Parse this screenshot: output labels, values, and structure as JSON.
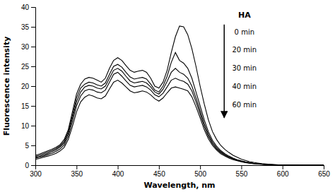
{
  "chart_data": {
    "type": "line",
    "xlabel": "Wavelength, nm",
    "ylabel": "Fluorescence intensity",
    "legend_title": "HA",
    "legend": "upper right",
    "grid": false,
    "xlim": [
      300,
      650
    ],
    "ylim": [
      0,
      40
    ],
    "xticks": [
      300,
      350,
      400,
      450,
      500,
      550,
      600,
      650
    ],
    "yticks": [
      0,
      5,
      10,
      15,
      20,
      25,
      30,
      35,
      40
    ],
    "x": [
      300,
      305,
      310,
      315,
      320,
      325,
      330,
      335,
      340,
      345,
      350,
      355,
      360,
      365,
      370,
      375,
      380,
      385,
      390,
      395,
      400,
      405,
      410,
      415,
      420,
      425,
      430,
      435,
      440,
      445,
      450,
      455,
      460,
      465,
      470,
      475,
      480,
      485,
      490,
      495,
      500,
      505,
      510,
      515,
      520,
      525,
      530,
      535,
      540,
      545,
      550,
      555,
      560,
      565,
      570,
      575,
      580,
      585,
      590,
      595,
      600,
      605,
      610,
      620,
      630,
      640,
      650
    ],
    "series": [
      {
        "name": "0 min",
        "color": "#000000",
        "values": [
          2.5,
          2.8,
          3.2,
          3.6,
          4.0,
          4.5,
          5.2,
          6.5,
          9.0,
          13.5,
          18.0,
          20.5,
          21.8,
          22.2,
          22.0,
          21.5,
          21.0,
          22.0,
          24.5,
          26.5,
          27.2,
          26.5,
          25.2,
          24.0,
          23.5,
          23.8,
          24.0,
          23.5,
          22.0,
          20.0,
          19.5,
          21.0,
          24.0,
          28.5,
          32.5,
          35.2,
          35.0,
          33.0,
          29.5,
          25.0,
          20.0,
          15.5,
          11.5,
          8.5,
          6.5,
          5.0,
          4.0,
          3.2,
          2.5,
          2.0,
          1.5,
          1.2,
          0.9,
          0.7,
          0.55,
          0.4,
          0.3,
          0.2,
          0.15,
          0.1,
          0.07,
          0.05,
          0.03,
          0.02,
          0.01,
          0.0,
          0.0
        ]
      },
      {
        "name": "20 min",
        "color": "#000000",
        "values": [
          2.2,
          2.5,
          2.9,
          3.3,
          3.7,
          4.2,
          4.9,
          6.0,
          8.5,
          12.5,
          17.0,
          19.5,
          20.5,
          21.0,
          20.8,
          20.3,
          20.0,
          20.8,
          23.0,
          25.0,
          25.5,
          24.8,
          23.5,
          22.3,
          21.8,
          22.0,
          22.2,
          21.8,
          20.5,
          19.0,
          18.5,
          20.0,
          22.5,
          26.0,
          28.5,
          26.5,
          25.8,
          24.5,
          22.0,
          18.5,
          15.0,
          11.5,
          8.5,
          6.3,
          4.8,
          3.7,
          2.9,
          2.3,
          1.8,
          1.4,
          1.1,
          0.85,
          0.65,
          0.5,
          0.38,
          0.28,
          0.2,
          0.15,
          0.1,
          0.07,
          0.05,
          0.03,
          0.02,
          0.01,
          0.0,
          0.0,
          0.0
        ]
      },
      {
        "name": "30 min",
        "color": "#000000",
        "values": [
          2.0,
          2.2,
          2.6,
          3.0,
          3.4,
          3.9,
          4.6,
          5.6,
          8.0,
          12.0,
          16.0,
          18.5,
          19.8,
          20.2,
          20.0,
          19.5,
          19.3,
          20.0,
          22.0,
          24.0,
          24.5,
          23.8,
          22.5,
          21.3,
          20.8,
          21.0,
          21.2,
          20.8,
          19.8,
          18.5,
          18.0,
          19.2,
          21.2,
          23.5,
          24.5,
          23.5,
          23.0,
          22.0,
          20.0,
          17.0,
          13.8,
          10.5,
          7.8,
          5.8,
          4.4,
          3.4,
          2.7,
          2.1,
          1.65,
          1.3,
          1.0,
          0.78,
          0.6,
          0.46,
          0.35,
          0.26,
          0.19,
          0.14,
          0.1,
          0.07,
          0.04,
          0.03,
          0.02,
          0.01,
          0.0,
          0.0,
          0.0
        ]
      },
      {
        "name": "40 min",
        "color": "#000000",
        "values": [
          1.8,
          2.0,
          2.3,
          2.7,
          3.0,
          3.5,
          4.1,
          5.1,
          7.3,
          11.0,
          15.0,
          17.5,
          18.8,
          19.2,
          19.0,
          18.5,
          18.3,
          19.0,
          21.0,
          23.0,
          23.5,
          22.5,
          21.3,
          20.2,
          19.8,
          20.0,
          20.2,
          19.8,
          19.0,
          17.8,
          17.3,
          18.2,
          19.8,
          21.5,
          22.0,
          21.5,
          21.2,
          20.5,
          18.8,
          16.0,
          13.0,
          9.8,
          7.3,
          5.4,
          4.1,
          3.2,
          2.5,
          2.0,
          1.55,
          1.2,
          0.95,
          0.73,
          0.56,
          0.43,
          0.33,
          0.24,
          0.18,
          0.13,
          0.09,
          0.06,
          0.04,
          0.03,
          0.02,
          0.01,
          0.0,
          0.0,
          0.0
        ]
      },
      {
        "name": "60 min",
        "color": "#000000",
        "values": [
          1.5,
          1.7,
          2.0,
          2.3,
          2.6,
          3.0,
          3.6,
          4.5,
          6.5,
          9.8,
          13.5,
          16.0,
          17.2,
          17.8,
          17.5,
          17.0,
          16.8,
          17.5,
          19.3,
          21.0,
          21.5,
          20.8,
          19.8,
          18.8,
          18.3,
          18.5,
          18.8,
          18.5,
          17.8,
          16.8,
          16.2,
          17.0,
          18.3,
          19.5,
          19.8,
          19.5,
          19.2,
          18.8,
          17.3,
          14.8,
          12.0,
          9.0,
          6.7,
          5.0,
          3.8,
          2.9,
          2.3,
          1.8,
          1.4,
          1.1,
          0.85,
          0.65,
          0.5,
          0.38,
          0.29,
          0.22,
          0.16,
          0.12,
          0.08,
          0.06,
          0.04,
          0.02,
          0.01,
          0.01,
          0.0,
          0.0,
          0.0
        ]
      }
    ]
  }
}
